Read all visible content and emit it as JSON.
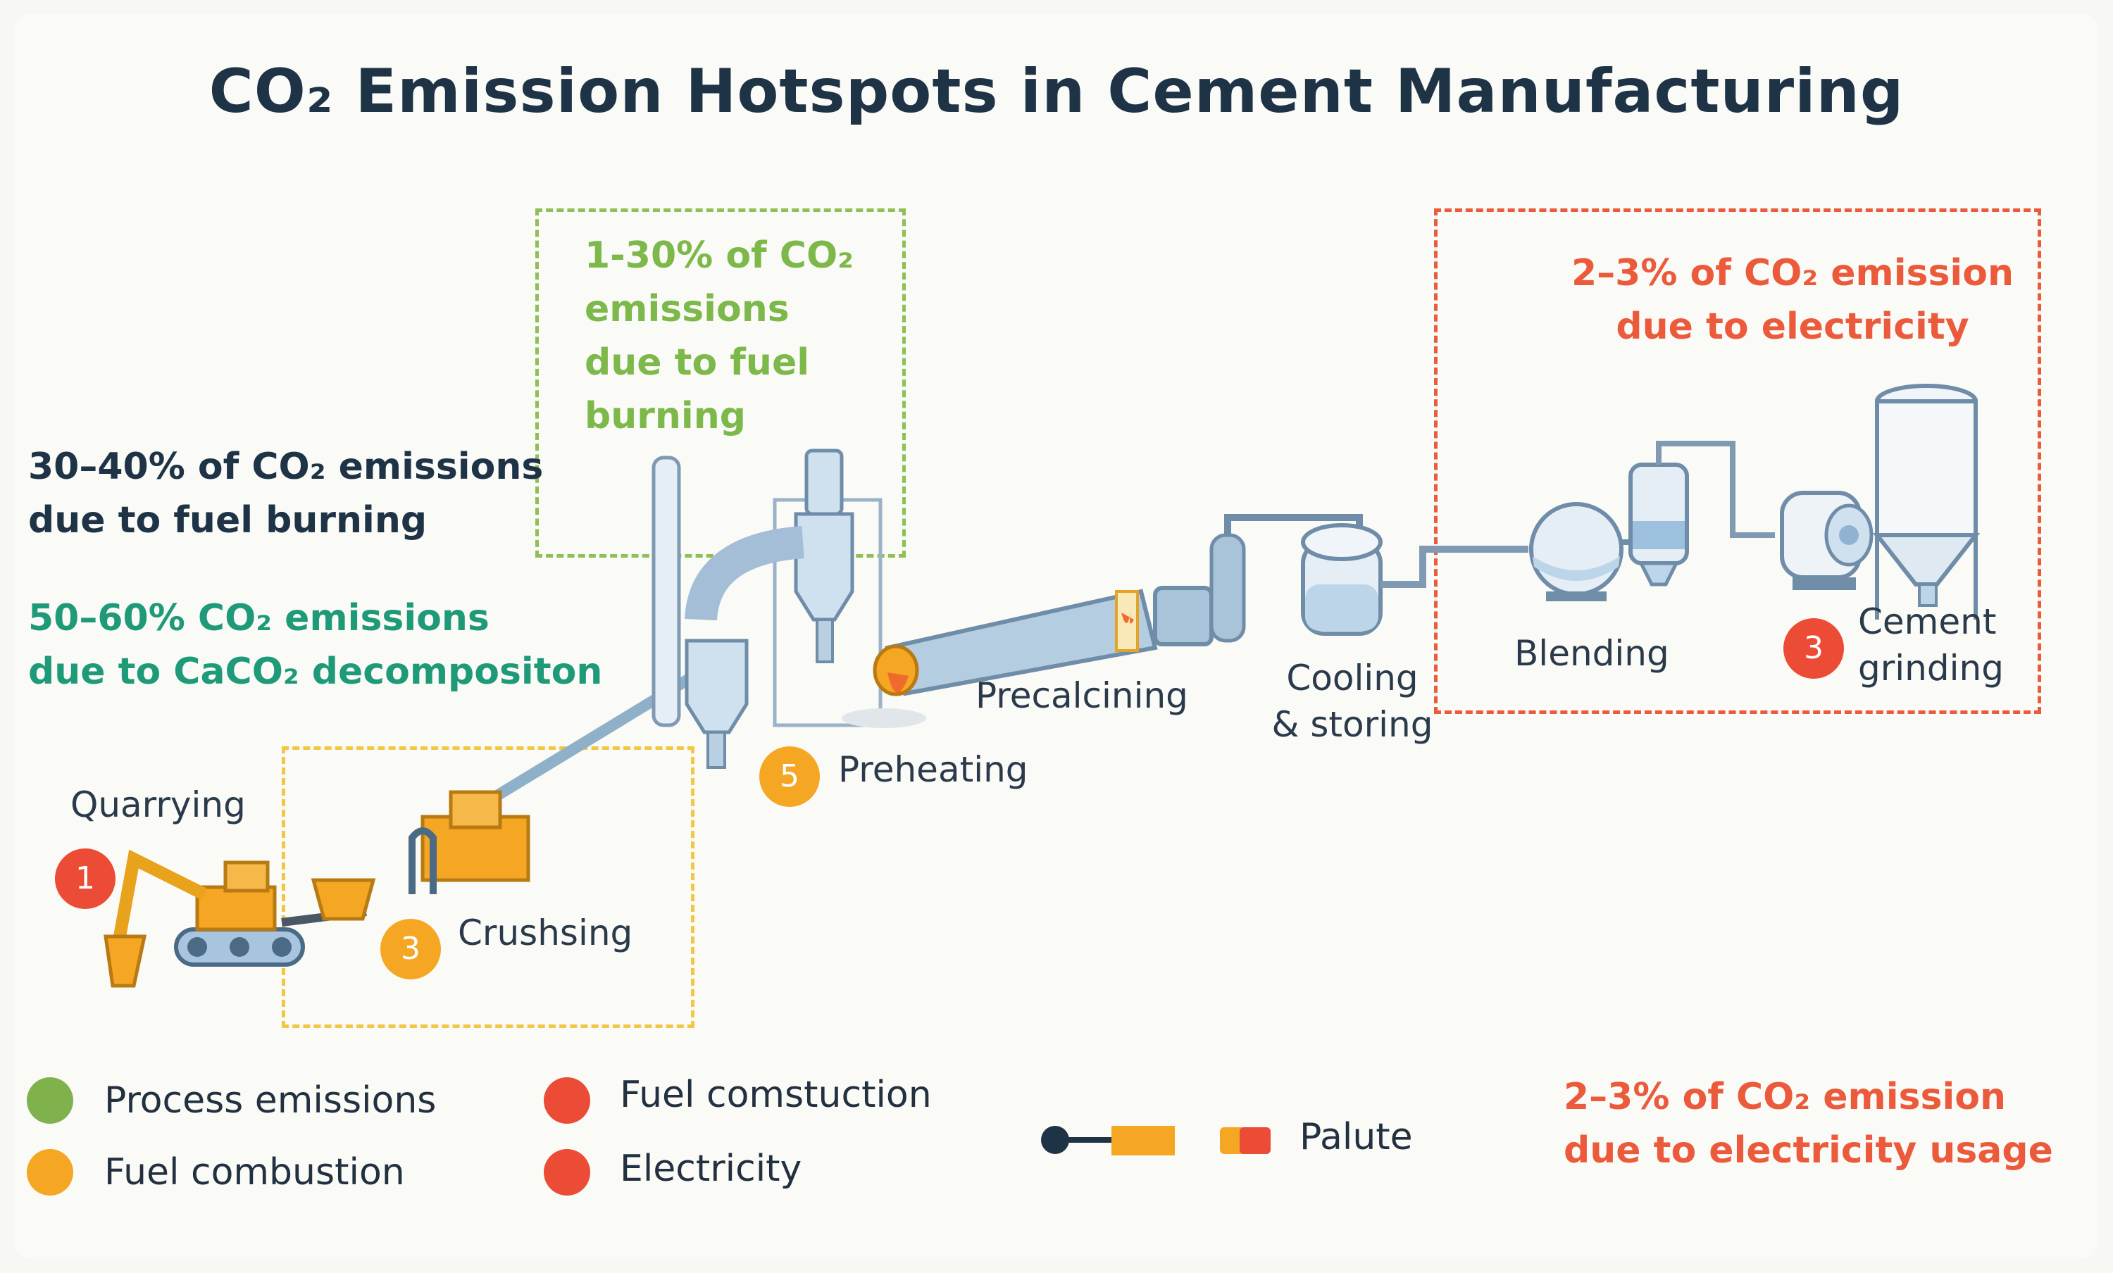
{
  "title": "CO₂ Emission Hotspots in Cement Manufacturing",
  "annotations": {
    "kiln_fuel": [
      "30–40% of CO₂ emissions",
      "due to fuel burning"
    ],
    "decomposition": [
      "50–60% CO₂ emissions",
      "due to CaCO₂ decompositon"
    ],
    "preheater_fuel": [
      "1-30% of CO₂",
      "emissions",
      "due to fuel",
      "burning"
    ],
    "grinding_electricity": [
      "2–3% of CO₂ emission",
      "due to electricity"
    ],
    "bottom_electricity": [
      "2–3% of CO₂ emission",
      "due to electricity usage"
    ]
  },
  "stages": {
    "quarrying": {
      "label": "Quarrying",
      "badge": "1"
    },
    "crushing": {
      "label": "Crushsing",
      "badge": "3"
    },
    "preheating": {
      "label": "Preheating",
      "badge": "5"
    },
    "precalcining": {
      "label": "Precalcining"
    },
    "cooling": {
      "label": [
        "Cooling",
        "& storing"
      ]
    },
    "blending": {
      "label": "Blending"
    },
    "grinding": {
      "label": [
        "Cement",
        "grinding"
      ],
      "badge": "3"
    }
  },
  "legend": {
    "items": [
      {
        "label": "Process emissions",
        "color": "#7fb24c"
      },
      {
        "label": "Fuel combustion",
        "color": "#f5a623"
      },
      {
        "label": "Fuel comstuction",
        "color": "#ec4b35"
      },
      {
        "label": "Electricity",
        "color": "#ec4b35"
      }
    ],
    "palette_label": "Palute"
  },
  "colors": {
    "dark": "#1f3347",
    "teal": "#1f9a78",
    "green": "#7db84a",
    "red": "#ec5a3c",
    "yellow": "#f5a623"
  }
}
